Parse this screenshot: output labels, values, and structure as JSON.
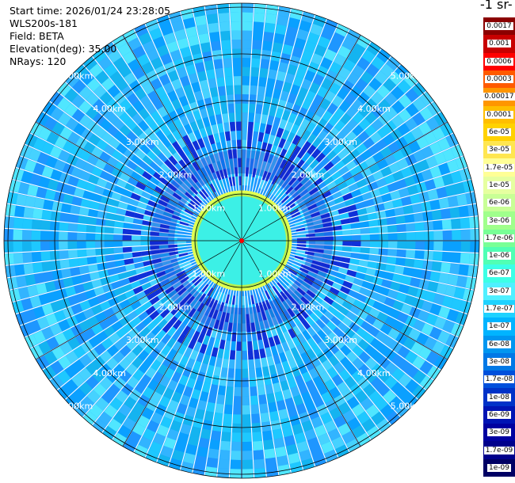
{
  "header": {
    "start_time": "Start time: 2026/01/24 23:28:05",
    "instrument": "WLS200s-181",
    "field": "Field: BETA",
    "elevation": "Elevation(deg): 35.00",
    "nrays": "NRays: 120"
  },
  "colorbar": {
    "units_label": "-1 sr-",
    "labels": [
      "0.0017",
      "0.001",
      "0.0006",
      "0.0003",
      "0.00017",
      "0.0001",
      "6e-05",
      "3e-05",
      "1.7e-05",
      "1e-05",
      "6e-06",
      "3e-06",
      "1.7e-06",
      "1e-06",
      "6e-07",
      "3e-07",
      "1.7e-07",
      "1e-07",
      "6e-08",
      "3e-08",
      "1.7e-08",
      "1e-08",
      "6e-09",
      "3e-09",
      "1.7e-09",
      "1e-09"
    ],
    "colors": [
      "#8b0000",
      "#c80000",
      "#ff0000",
      "#ff5a00",
      "#ff9600",
      "#ffbe00",
      "#ffd200",
      "#ffe650",
      "#ffff96",
      "#e6ffa0",
      "#c8ff96",
      "#a0ff8c",
      "#78ff96",
      "#50ffb4",
      "#3cffe6",
      "#50f0ff",
      "#1ed2ff",
      "#00b4ff",
      "#0096f0",
      "#0078e6",
      "#0050dc",
      "#0032c8",
      "#0014b4",
      "#0000a0",
      "#00008c",
      "#000064"
    ]
  },
  "range_rings": {
    "labels": [
      "1.00km",
      "2.00km",
      "3.00km",
      "4.00km",
      "5.00km"
    ]
  }
}
